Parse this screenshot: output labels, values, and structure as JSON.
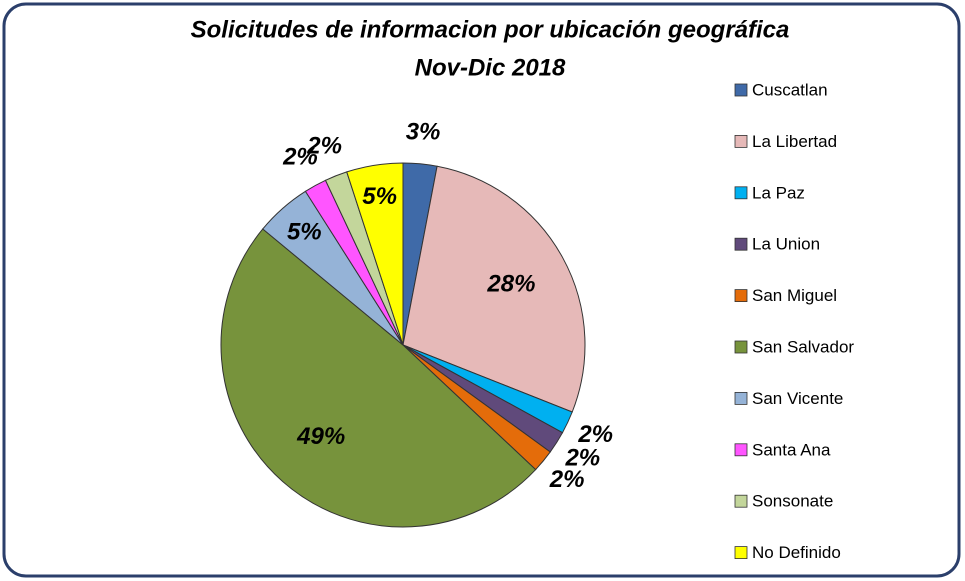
{
  "chart_data": {
    "type": "pie",
    "title": "Solicitudes de informacion por ubicación geográfica",
    "subtitle": "Nov-Dic 2018",
    "categories": [
      "Cuscatlan",
      "La Libertad",
      "La Paz",
      "La Union",
      "San Miguel",
      "San Salvador",
      "San Vicente",
      "Santa Ana",
      "Sonsonate",
      "No Definido"
    ],
    "values": [
      3,
      28,
      2,
      2,
      2,
      49,
      5,
      2,
      2,
      5
    ],
    "value_labels": [
      "3%",
      "28%",
      "2%",
      "2%",
      "2%",
      "49%",
      "5%",
      "2%",
      "2%",
      "5%"
    ],
    "colors": [
      "#3f6aa8",
      "#e6b9b8",
      "#00b0f0",
      "#604a7b",
      "#e46c0a",
      "#77933c",
      "#95b3d7",
      "#ff55ff",
      "#c3d69b",
      "#ffff00"
    ],
    "legend": "right"
  }
}
